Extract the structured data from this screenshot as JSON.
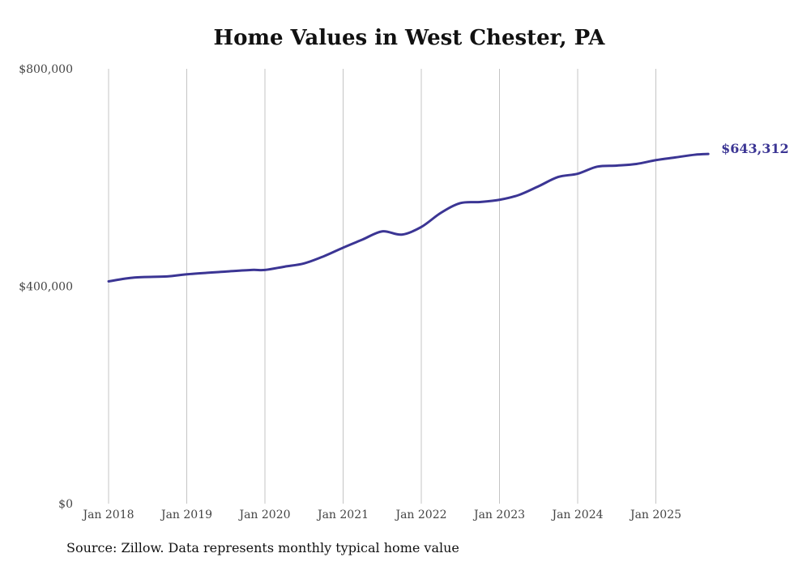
{
  "chart_data": {
    "type": "line",
    "title": "Home Values in West Chester, PA",
    "xlabel": "",
    "ylabel": "",
    "ylim": [
      0,
      800000
    ],
    "xlim": [
      2018.0,
      2025.67
    ],
    "y_ticks": [
      0,
      400000,
      800000
    ],
    "y_tick_labels": [
      "$0",
      "$400,000",
      "$800,000"
    ],
    "x_ticks": [
      2018,
      2019,
      2020,
      2021,
      2022,
      2023,
      2024,
      2025
    ],
    "x_tick_labels": [
      "Jan 2018",
      "Jan 2019",
      "Jan 2020",
      "Jan 2021",
      "Jan 2022",
      "Jan 2023",
      "Jan 2024",
      "Jan 2025"
    ],
    "grid": "vertical",
    "series": [
      {
        "name": "Typical home value",
        "color": "#3b3594",
        "x": [
          2018.0,
          2018.33,
          2018.75,
          2019.0,
          2019.5,
          2019.83,
          2020.0,
          2020.25,
          2020.5,
          2020.75,
          2021.0,
          2021.25,
          2021.5,
          2021.75,
          2022.0,
          2022.25,
          2022.5,
          2022.75,
          2023.0,
          2023.25,
          2023.5,
          2023.75,
          2024.0,
          2024.25,
          2024.5,
          2024.75,
          2025.0,
          2025.25,
          2025.5,
          2025.67
        ],
        "values": [
          409000,
          416000,
          418000,
          422000,
          427000,
          430000,
          430000,
          436000,
          442000,
          455000,
          471000,
          486000,
          501000,
          495000,
          509000,
          535000,
          553000,
          555000,
          559000,
          568000,
          584000,
          601000,
          607000,
          620000,
          622000,
          625000,
          632000,
          637000,
          642000,
          643312
        ]
      }
    ],
    "end_label": "$643,312",
    "source": "Source: Zillow. Data represents monthly typical home value"
  }
}
